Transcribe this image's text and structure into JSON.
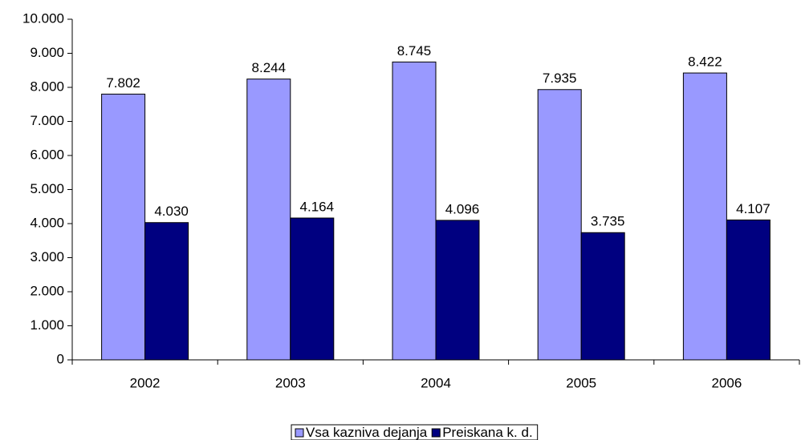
{
  "chart_data": {
    "type": "bar",
    "categories": [
      "2002",
      "2003",
      "2004",
      "2005",
      "2006"
    ],
    "series": [
      {
        "name": "Vsa kazniva dejanja",
        "color": "#9999ff",
        "values": [
          7802,
          8244,
          8745,
          7935,
          8422
        ],
        "value_labels": [
          "7.802",
          "8.244",
          "8.745",
          "7.935",
          "8.422"
        ]
      },
      {
        "name": "Preiskana k. d.",
        "color": "#000080",
        "values": [
          4030,
          4164,
          4096,
          3735,
          4107
        ],
        "value_labels": [
          "4.030",
          "4.164",
          "4.096",
          "3.735",
          "4.107"
        ]
      }
    ],
    "ylim": [
      0,
      10000
    ],
    "yticks": [
      0,
      {
        "value": 1000,
        "label": "1.000"
      },
      {
        "value": 2000,
        "label": "2.000"
      },
      {
        "value": 3000,
        "label": "3.000"
      },
      {
        "value": 4000,
        "label": "4.000"
      },
      {
        "value": 5000,
        "label": "5.000"
      },
      {
        "value": 6000,
        "label": "6.000"
      },
      {
        "value": 7000,
        "label": "7.000"
      },
      {
        "value": 8000,
        "label": "8.000"
      },
      {
        "value": 9000,
        "label": "9.000"
      },
      {
        "value": 10000,
        "label": "10.000"
      }
    ],
    "grid": false,
    "legend": "bottom"
  }
}
